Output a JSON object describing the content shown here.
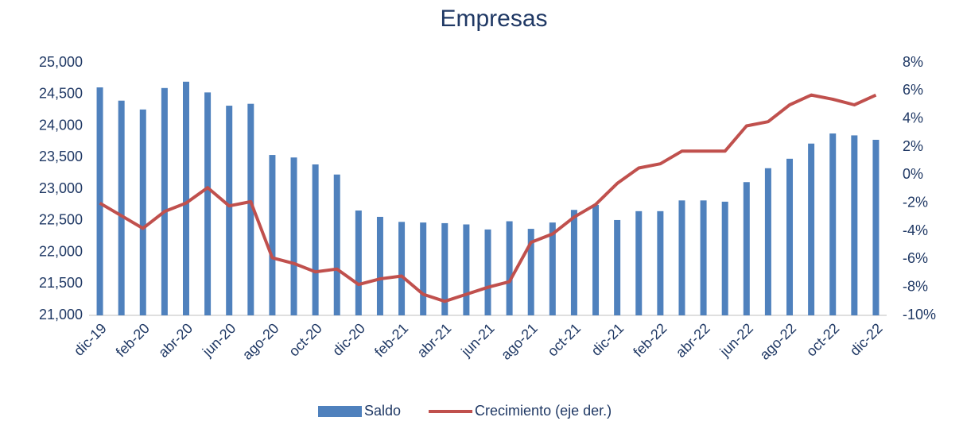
{
  "chart_data": {
    "type": "bar_line",
    "title": "Empresas",
    "categories": [
      "dic-19",
      null,
      "feb-20",
      null,
      "abr-20",
      null,
      "jun-20",
      null,
      "ago-20",
      null,
      "oct-20",
      null,
      "dic-20",
      null,
      "feb-21",
      null,
      "abr-21",
      null,
      "jun-21",
      null,
      "ago-21",
      null,
      "oct-21",
      null,
      "dic-21",
      null,
      "feb-22",
      null,
      "abr-22",
      null,
      "jun-22",
      null,
      "ago-22",
      null,
      "oct-22",
      null,
      "dic-22"
    ],
    "series": [
      {
        "name": "Saldo",
        "type": "bar",
        "color": "#4f81bd",
        "values": [
          24610,
          24400,
          24260,
          24600,
          24700,
          24530,
          24320,
          24350,
          23540,
          23500,
          23390,
          23230,
          22660,
          22560,
          22480,
          22470,
          22460,
          22440,
          22360,
          22490,
          22370,
          22470,
          22670,
          22750,
          22510,
          22650,
          22650,
          22820,
          22820,
          22800,
          23110,
          23330,
          23480,
          23720,
          23880,
          23850,
          23780
        ]
      },
      {
        "name": "Crecimiento (eje der.)",
        "type": "line",
        "axis": "y2",
        "color": "#c0504d",
        "values": [
          -2.0,
          -2.9,
          -3.8,
          -2.6,
          -2.0,
          -0.9,
          -2.2,
          -1.9,
          -5.9,
          -6.3,
          -6.9,
          -6.7,
          -7.8,
          -7.4,
          -7.2,
          -8.5,
          -9.0,
          -8.5,
          -8.0,
          -7.6,
          -4.8,
          -4.2,
          -3.0,
          -2.1,
          -0.6,
          0.5,
          0.8,
          1.7,
          1.7,
          1.7,
          3.5,
          3.8,
          5.0,
          5.7,
          5.4,
          5.0,
          5.7
        ]
      }
    ],
    "ylim": [
      21000,
      25000
    ],
    "yticks": [
      {
        "value": 21000,
        "label": "21,000"
      },
      {
        "value": 21500,
        "label": "21,500"
      },
      {
        "value": 22000,
        "label": "22,000"
      },
      {
        "value": 22500,
        "label": "22,500"
      },
      {
        "value": 23000,
        "label": "23,000"
      },
      {
        "value": 23500,
        "label": "23,500"
      },
      {
        "value": 24000,
        "label": "24,000"
      },
      {
        "value": 24500,
        "label": "24,500"
      },
      {
        "value": 25000,
        "label": "25,000"
      }
    ],
    "y2lim": [
      -10,
      8
    ],
    "y2ticks": [
      {
        "value": -10,
        "label": "-10%"
      },
      {
        "value": -8,
        "label": "-8%"
      },
      {
        "value": -6,
        "label": "-6%"
      },
      {
        "value": -4,
        "label": "-4%"
      },
      {
        "value": -2,
        "label": "-2%"
      },
      {
        "value": 0,
        "label": "0%"
      },
      {
        "value": 2,
        "label": "2%"
      },
      {
        "value": 4,
        "label": "4%"
      },
      {
        "value": 6,
        "label": "6%"
      },
      {
        "value": 8,
        "label": "8%"
      }
    ],
    "legend": "bottom",
    "grid": false
  }
}
